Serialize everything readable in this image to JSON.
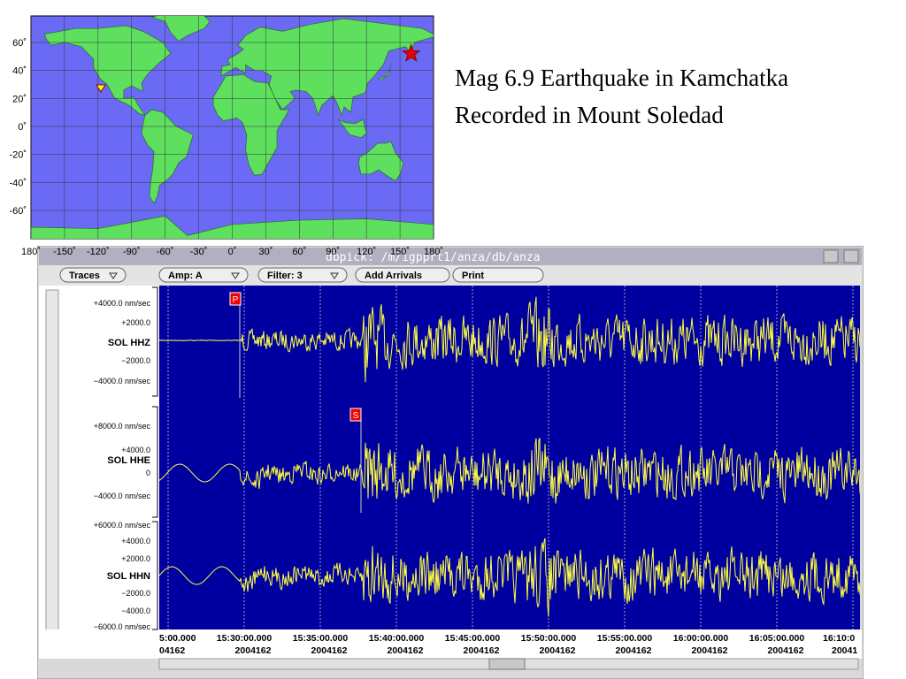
{
  "map": {
    "lat_labels": [
      "60˚",
      "40˚",
      "20˚",
      "0˚",
      "-20˚",
      "-40˚",
      "-60˚"
    ],
    "lon_labels": [
      "180˚",
      "-150˚",
      "-120˚",
      "-90˚",
      "-60˚",
      "-30˚",
      "0˚",
      "30˚",
      "60˚",
      "90˚",
      "120˚",
      "150˚",
      "180˚"
    ]
  },
  "title_lines": [
    "Mag 6.9 Earthquake in Kamchatka",
    "Recorded in Mount Soledad"
  ],
  "window": {
    "title": "dbpick: /m/igpprt1/anza/db/anza",
    "buttons": [
      "Traces",
      "Amp: A",
      "Filter: 3",
      "Add Arrivals",
      "Print"
    ],
    "channels": [
      {
        "name": "SOL HHZ",
        "scale": [
          "+4000.0 nm/sec",
          "+2000.0",
          "−2000.0",
          "−4000.0 nm/sec"
        ]
      },
      {
        "name": "SOL HHE",
        "scale": [
          "+8000.0 nm/sec",
          "+4000.0",
          "0",
          "−4000.0 nm/sec"
        ]
      },
      {
        "name": "SOL HHN",
        "scale": [
          "+6000.0 nm/sec",
          "+4000.0",
          "+2000.0",
          "−2000.0",
          "−4000.0",
          "−6000.0 nm/sec"
        ]
      }
    ],
    "phases": [
      "P",
      "S"
    ],
    "times": [
      {
        "time": "5:00.000",
        "date": "04162"
      },
      {
        "time": "15:30:00.000",
        "date": "2004162"
      },
      {
        "time": "15:35:00.000",
        "date": "2004162"
      },
      {
        "time": "15:40:00.000",
        "date": "2004162"
      },
      {
        "time": "15:45:00.000",
        "date": "2004162"
      },
      {
        "time": "15:50:00.000",
        "date": "2004162"
      },
      {
        "time": "15:55:00.000",
        "date": "2004162"
      },
      {
        "time": "16:00:00.000",
        "date": "2004162"
      },
      {
        "time": "16:05:00.000",
        "date": "2004162"
      },
      {
        "time": "16:10:0",
        "date": "20041"
      }
    ]
  }
}
